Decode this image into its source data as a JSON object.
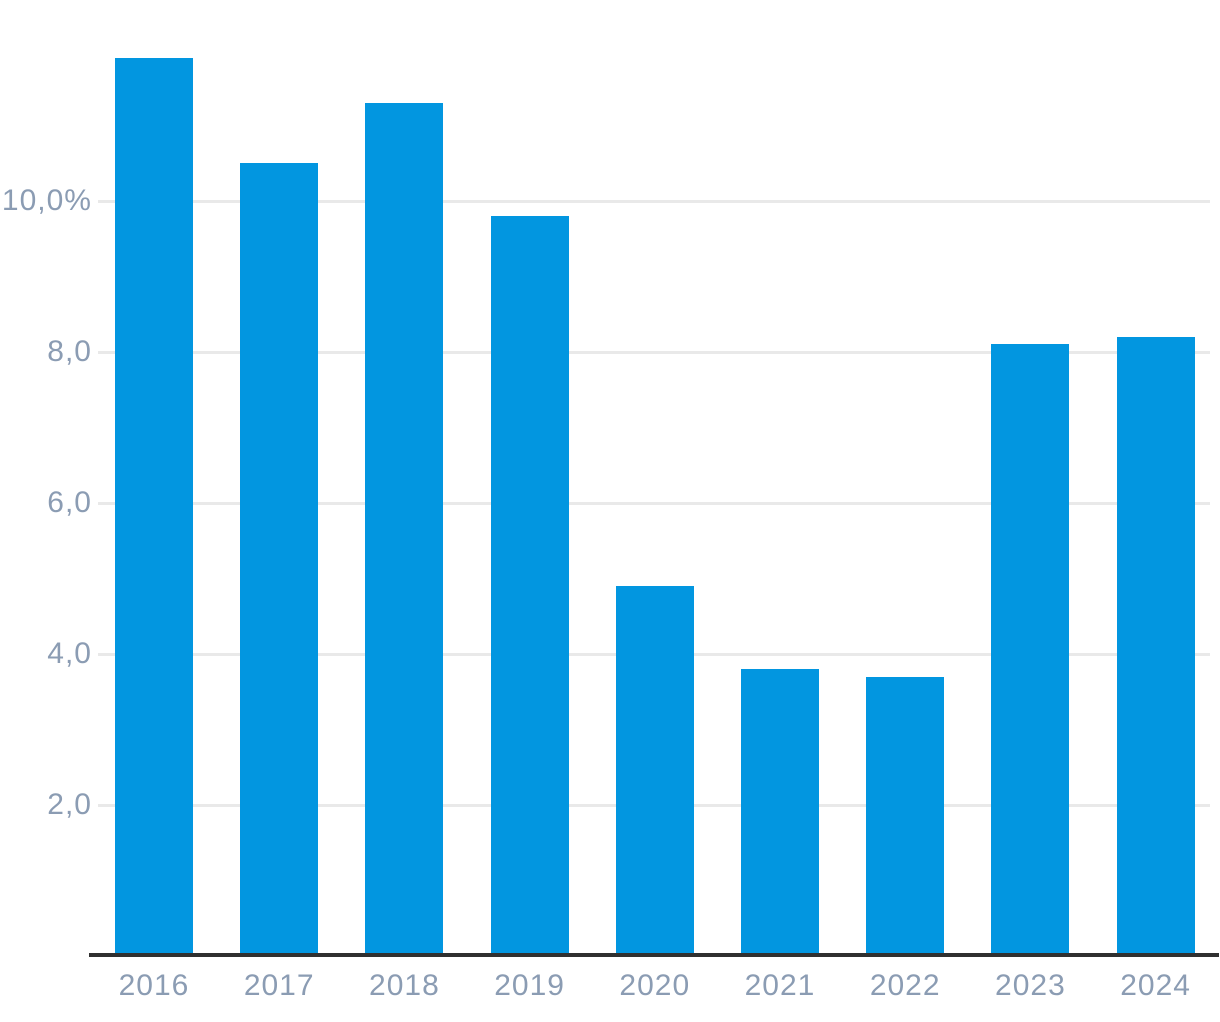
{
  "chart_data": {
    "type": "bar",
    "categories": [
      "2016",
      "2017",
      "2018",
      "2019",
      "2020",
      "2021",
      "2022",
      "2023",
      "2024"
    ],
    "values": [
      11.9,
      10.5,
      11.3,
      9.8,
      4.9,
      3.8,
      3.7,
      8.1,
      8.2
    ],
    "title": "",
    "xlabel": "",
    "ylabel": "",
    "ylim": [
      0,
      12.2
    ],
    "yticks": [
      {
        "value": 2,
        "label": "2,0"
      },
      {
        "value": 4,
        "label": "4,0"
      },
      {
        "value": 6,
        "label": "6,0"
      },
      {
        "value": 8,
        "label": "8,0"
      },
      {
        "value": 10,
        "label": "10,0%"
      }
    ],
    "grid": true,
    "legend": false,
    "value_format": "percent-decimal-comma"
  },
  "colors": {
    "bar": "#0296e0",
    "gridline": "#e9e9e9",
    "axis_line": "#303030",
    "tick_label": "#8b9cb3",
    "background": "#ffffff"
  }
}
